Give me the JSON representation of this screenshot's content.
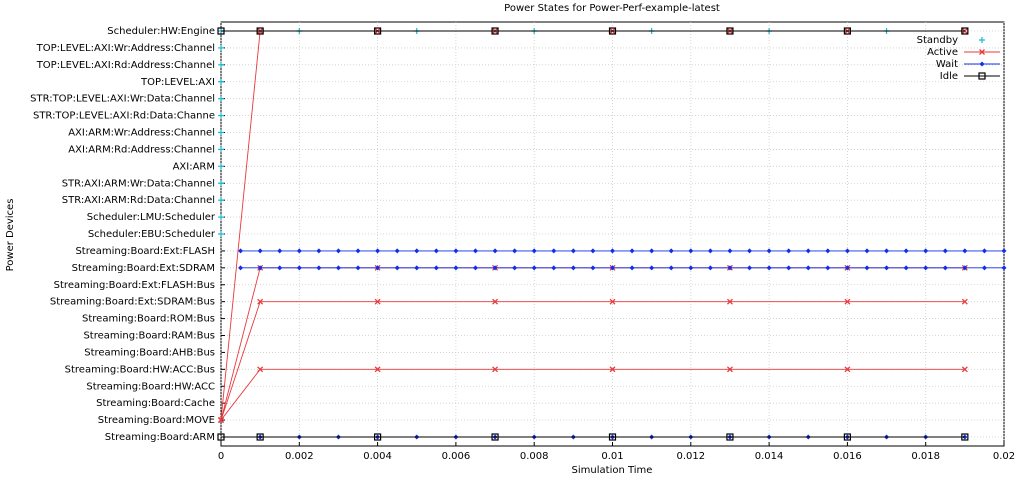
{
  "chart_data": {
    "type": "scatter",
    "title": "Power States for Power-Perf-example-latest",
    "x_label": "Simulation Time",
    "y_label": "Power Devices",
    "categories": [
      "Scheduler:HW:Engine",
      "TOP:LEVEL:AXI:Wr:Address:Channel",
      "TOP:LEVEL:AXI:Rd:Address:Channel",
      "TOP:LEVEL:AXI",
      "STR:TOP:LEVEL:AXI:Wr:Data:Channel",
      "STR:TOP:LEVEL:AXI:Rd:Data:Channe",
      "AXI:ARM:Wr:Address:Channel",
      "AXI:ARM:Rd:Address:Channel",
      "AXI:ARM",
      "STR:AXI:ARM:Wr:Data:Channel",
      "STR:AXI:ARM:Rd:Data:Channel",
      "Scheduler:LMU:Scheduler",
      "Scheduler:EBU:Scheduler",
      "Streaming:Board:Ext:FLASH",
      "Streaming:Board:Ext:SDRAM",
      "Streaming:Board:Ext:FLASH:Bus",
      "Streaming:Board:Ext:SDRAM:Bus",
      "Streaming:Board:ROM:Bus",
      "Streaming:Board:RAM:Bus",
      "Streaming:Board:AHB:Bus",
      "Streaming:Board:HW:ACC:Bus",
      "Streaming:Board:HW:ACC",
      "Streaming:Board:Cache",
      "Streaming:Board:MOVE",
      "Streaming:Board:ARM"
    ],
    "xlim": [
      0,
      0.02
    ],
    "xticks": [
      0,
      0.002,
      0.004,
      0.006,
      0.008,
      0.01,
      0.012,
      0.014,
      0.016,
      0.018,
      0.02
    ],
    "grid": true,
    "legend": "top-right",
    "series": [
      {
        "name": "Standby",
        "color": "#1cb8d0",
        "style": "points",
        "x": [
          0,
          0,
          0,
          0,
          0,
          0,
          0,
          0,
          0,
          0,
          0,
          0,
          0,
          0.002,
          0.005,
          0.008,
          0.011,
          0.014,
          0.017
        ],
        "y": [
          "Scheduler:HW:Engine",
          "TOP:LEVEL:AXI:Wr:Address:Channel",
          "TOP:LEVEL:AXI:Rd:Address:Channel",
          "TOP:LEVEL:AXI",
          "STR:TOP:LEVEL:AXI:Wr:Data:Channel",
          "STR:TOP:LEVEL:AXI:Rd:Data:Channe",
          "AXI:ARM:Wr:Address:Channel",
          "AXI:ARM:Rd:Address:Channel",
          "AXI:ARM",
          "STR:AXI:ARM:Wr:Data:Channel",
          "STR:AXI:ARM:Rd:Data:Channel",
          "Scheduler:LMU:Scheduler",
          "Scheduler:EBU:Scheduler",
          "Scheduler:HW:Engine",
          "Scheduler:HW:Engine",
          "Scheduler:HW:Engine",
          "Scheduler:HW:Engine",
          "Scheduler:HW:Engine",
          "Scheduler:HW:Engine"
        ]
      },
      {
        "name": "Active",
        "color": "#e8383b",
        "style": "linespoints",
        "x": [
          0,
          0.001,
          0.004,
          0.007,
          0.01,
          0.013,
          0.016,
          0.019,
          null,
          0,
          0.001,
          0.004,
          0.007,
          0.01,
          0.013,
          0.016,
          0.019,
          null,
          0,
          0.001,
          0.004,
          0.007,
          0.01,
          0.013,
          0.016,
          0.019,
          null,
          0,
          0.001,
          0.004,
          0.007,
          0.01,
          0.013,
          0.016,
          0.019
        ],
        "y": [
          "Streaming:Board:MOVE",
          "Scheduler:HW:Engine",
          "Scheduler:HW:Engine",
          "Scheduler:HW:Engine",
          "Scheduler:HW:Engine",
          "Scheduler:HW:Engine",
          "Scheduler:HW:Engine",
          "Scheduler:HW:Engine",
          null,
          "Streaming:Board:MOVE",
          "Streaming:Board:Ext:SDRAM",
          "Streaming:Board:Ext:SDRAM",
          "Streaming:Board:Ext:SDRAM",
          "Streaming:Board:Ext:SDRAM",
          "Streaming:Board:Ext:SDRAM",
          "Streaming:Board:Ext:SDRAM",
          "Streaming:Board:Ext:SDRAM",
          null,
          "Streaming:Board:MOVE",
          "Streaming:Board:Ext:SDRAM:Bus",
          "Streaming:Board:Ext:SDRAM:Bus",
          "Streaming:Board:Ext:SDRAM:Bus",
          "Streaming:Board:Ext:SDRAM:Bus",
          "Streaming:Board:Ext:SDRAM:Bus",
          "Streaming:Board:Ext:SDRAM:Bus",
          "Streaming:Board:Ext:SDRAM:Bus",
          null,
          "Streaming:Board:MOVE",
          "Streaming:Board:HW:ACC:Bus",
          "Streaming:Board:HW:ACC:Bus",
          "Streaming:Board:HW:ACC:Bus",
          "Streaming:Board:HW:ACC:Bus",
          "Streaming:Board:HW:ACC:Bus",
          "Streaming:Board:HW:ACC:Bus",
          "Streaming:Board:HW:ACC:Bus"
        ]
      },
      {
        "name": "Wait",
        "color": "#1030e8",
        "style": "linespoints",
        "x": [
          0.0005,
          0.001,
          0.0015,
          0.002,
          0.0025,
          0.003,
          0.0035,
          0.004,
          0.0045,
          0.005,
          0.0055,
          0.006,
          0.0065,
          0.007,
          0.0075,
          0.008,
          0.0085,
          0.009,
          0.0095,
          0.01,
          0.0105,
          0.011,
          0.0115,
          0.012,
          0.0125,
          0.013,
          0.0135,
          0.014,
          0.0145,
          0.015,
          0.0155,
          0.016,
          0.0165,
          0.017,
          0.0175,
          0.018,
          0.0185,
          0.019,
          0.0195,
          0.02,
          null,
          0.0005,
          0.001,
          0.0015,
          0.002,
          0.0025,
          0.003,
          0.0035,
          0.004,
          0.0045,
          0.005,
          0.0055,
          0.006,
          0.0065,
          0.007,
          0.0075,
          0.008,
          0.0085,
          0.009,
          0.0095,
          0.01,
          0.0105,
          0.011,
          0.0115,
          0.012,
          0.0125,
          0.013,
          0.0135,
          0.014,
          0.0145,
          0.015,
          0.0155,
          0.016,
          0.0165,
          0.017,
          0.0175,
          0.018,
          0.0185,
          0.019,
          0.0195,
          0.02,
          null,
          0.001,
          0.002,
          0.003,
          0.004,
          0.005,
          0.006,
          0.007,
          0.008,
          0.009,
          0.01,
          0.011,
          0.012,
          0.013,
          0.014,
          0.015,
          0.016,
          0.017,
          0.018,
          0.019
        ],
        "y": [
          "Streaming:Board:Ext:FLASH",
          "Streaming:Board:Ext:FLASH",
          "Streaming:Board:Ext:FLASH",
          "Streaming:Board:Ext:FLASH",
          "Streaming:Board:Ext:FLASH",
          "Streaming:Board:Ext:FLASH",
          "Streaming:Board:Ext:FLASH",
          "Streaming:Board:Ext:FLASH",
          "Streaming:Board:Ext:FLASH",
          "Streaming:Board:Ext:FLASH",
          "Streaming:Board:Ext:FLASH",
          "Streaming:Board:Ext:FLASH",
          "Streaming:Board:Ext:FLASH",
          "Streaming:Board:Ext:FLASH",
          "Streaming:Board:Ext:FLASH",
          "Streaming:Board:Ext:FLASH",
          "Streaming:Board:Ext:FLASH",
          "Streaming:Board:Ext:FLASH",
          "Streaming:Board:Ext:FLASH",
          "Streaming:Board:Ext:FLASH",
          "Streaming:Board:Ext:FLASH",
          "Streaming:Board:Ext:FLASH",
          "Streaming:Board:Ext:FLASH",
          "Streaming:Board:Ext:FLASH",
          "Streaming:Board:Ext:FLASH",
          "Streaming:Board:Ext:FLASH",
          "Streaming:Board:Ext:FLASH",
          "Streaming:Board:Ext:FLASH",
          "Streaming:Board:Ext:FLASH",
          "Streaming:Board:Ext:FLASH",
          "Streaming:Board:Ext:FLASH",
          "Streaming:Board:Ext:FLASH",
          "Streaming:Board:Ext:FLASH",
          "Streaming:Board:Ext:FLASH",
          "Streaming:Board:Ext:FLASH",
          "Streaming:Board:Ext:FLASH",
          "Streaming:Board:Ext:FLASH",
          "Streaming:Board:Ext:FLASH",
          "Streaming:Board:Ext:FLASH",
          "Streaming:Board:Ext:FLASH",
          null,
          "Streaming:Board:Ext:SDRAM",
          "Streaming:Board:Ext:SDRAM",
          "Streaming:Board:Ext:SDRAM",
          "Streaming:Board:Ext:SDRAM",
          "Streaming:Board:Ext:SDRAM",
          "Streaming:Board:Ext:SDRAM",
          "Streaming:Board:Ext:SDRAM",
          "Streaming:Board:Ext:SDRAM",
          "Streaming:Board:Ext:SDRAM",
          "Streaming:Board:Ext:SDRAM",
          "Streaming:Board:Ext:SDRAM",
          "Streaming:Board:Ext:SDRAM",
          "Streaming:Board:Ext:SDRAM",
          "Streaming:Board:Ext:SDRAM",
          "Streaming:Board:Ext:SDRAM",
          "Streaming:Board:Ext:SDRAM",
          "Streaming:Board:Ext:SDRAM",
          "Streaming:Board:Ext:SDRAM",
          "Streaming:Board:Ext:SDRAM",
          "Streaming:Board:Ext:SDRAM",
          "Streaming:Board:Ext:SDRAM",
          "Streaming:Board:Ext:SDRAM",
          "Streaming:Board:Ext:SDRAM",
          "Streaming:Board:Ext:SDRAM",
          "Streaming:Board:Ext:SDRAM",
          "Streaming:Board:Ext:SDRAM",
          "Streaming:Board:Ext:SDRAM",
          "Streaming:Board:Ext:SDRAM",
          "Streaming:Board:Ext:SDRAM",
          "Streaming:Board:Ext:SDRAM",
          "Streaming:Board:Ext:SDRAM",
          "Streaming:Board:Ext:SDRAM",
          "Streaming:Board:Ext:SDRAM",
          "Streaming:Board:Ext:SDRAM",
          "Streaming:Board:Ext:SDRAM",
          "Streaming:Board:Ext:SDRAM",
          "Streaming:Board:Ext:SDRAM",
          "Streaming:Board:Ext:SDRAM",
          "Streaming:Board:Ext:SDRAM",
          "Streaming:Board:Ext:SDRAM",
          null,
          "Streaming:Board:ARM",
          "Streaming:Board:ARM",
          "Streaming:Board:ARM",
          "Streaming:Board:ARM",
          "Streaming:Board:ARM",
          "Streaming:Board:ARM",
          "Streaming:Board:ARM",
          "Streaming:Board:ARM",
          "Streaming:Board:ARM",
          "Streaming:Board:ARM",
          "Streaming:Board:ARM",
          "Streaming:Board:ARM",
          "Streaming:Board:ARM",
          "Streaming:Board:ARM",
          "Streaming:Board:ARM",
          "Streaming:Board:ARM",
          "Streaming:Board:ARM",
          "Streaming:Board:ARM",
          "Streaming:Board:ARM"
        ]
      },
      {
        "name": "Idle",
        "color": "#000000",
        "style": "linespoints",
        "x": [
          0,
          0.001,
          0.004,
          0.007,
          0.01,
          0.013,
          0.016,
          0.019,
          null,
          0,
          0.001,
          0.004,
          0.007,
          0.01,
          0.013,
          0.016,
          0.019
        ],
        "y": [
          "Scheduler:HW:Engine",
          "Scheduler:HW:Engine",
          "Scheduler:HW:Engine",
          "Scheduler:HW:Engine",
          "Scheduler:HW:Engine",
          "Scheduler:HW:Engine",
          "Scheduler:HW:Engine",
          "Scheduler:HW:Engine",
          null,
          "Streaming:Board:ARM",
          "Streaming:Board:ARM",
          "Streaming:Board:ARM",
          "Streaming:Board:ARM",
          "Streaming:Board:ARM",
          "Streaming:Board:ARM",
          "Streaming:Board:ARM",
          "Streaming:Board:ARM"
        ]
      }
    ]
  }
}
